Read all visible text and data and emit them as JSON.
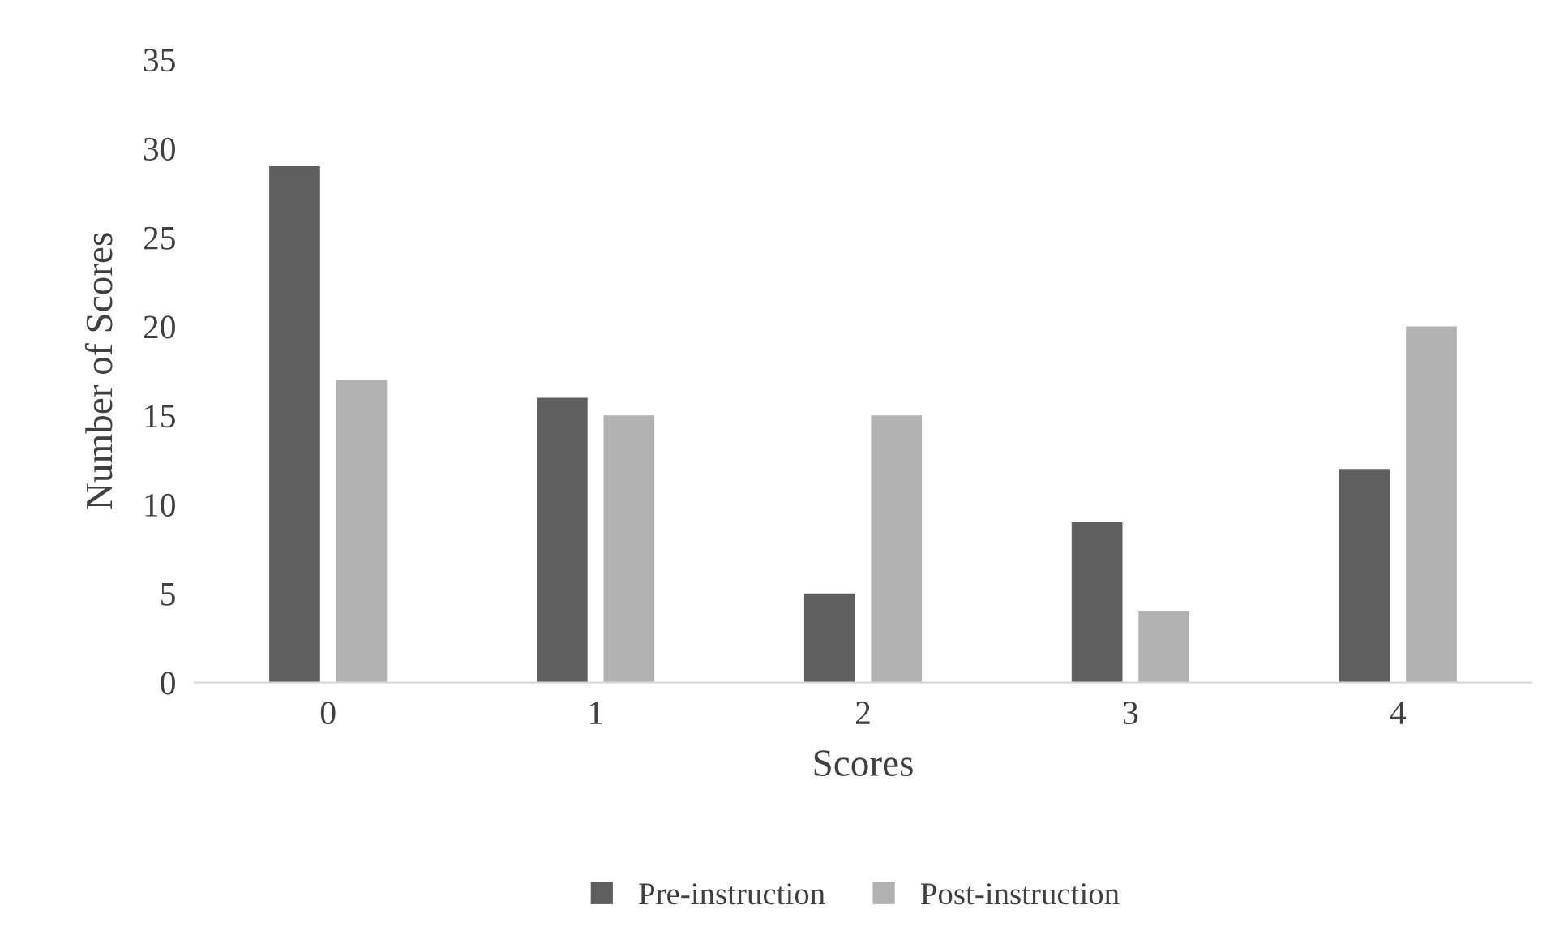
{
  "chart_data": {
    "type": "bar",
    "xlabel": "Scores",
    "ylabel": "Number of Scores",
    "categories": [
      "0",
      "1",
      "2",
      "3",
      "4"
    ],
    "series": [
      {
        "name": "Pre-instruction",
        "color": "#5f5f5f",
        "values": [
          29,
          16,
          5,
          9,
          12
        ]
      },
      {
        "name": "Post-instruction",
        "color": "#b2b2b2",
        "values": [
          17,
          15,
          15,
          4,
          20
        ]
      }
    ],
    "ylim": [
      0,
      35
    ],
    "yticks": [
      0,
      5,
      10,
      15,
      20,
      25,
      30,
      35
    ],
    "grid": false,
    "legend": "bottom"
  }
}
